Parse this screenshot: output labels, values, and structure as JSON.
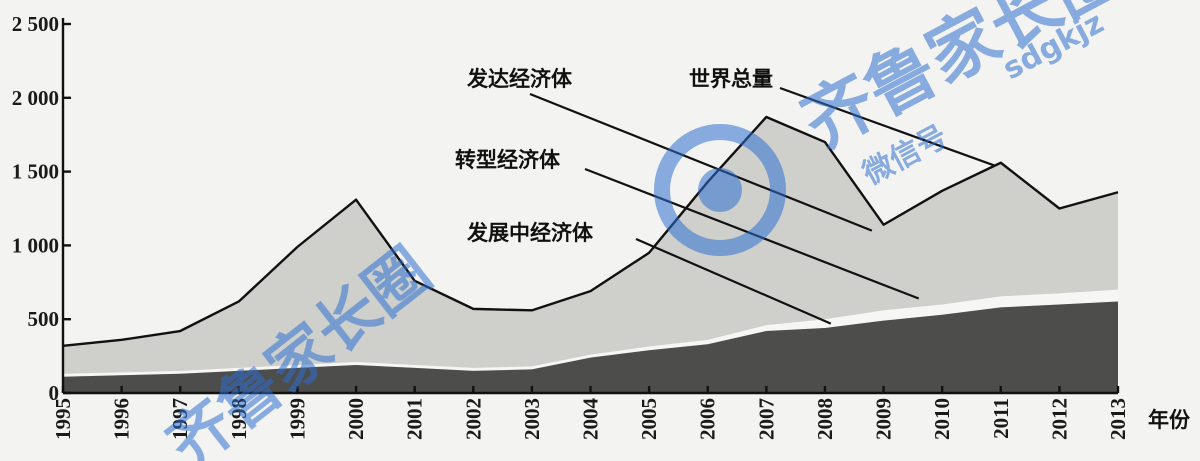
{
  "chart_data": {
    "type": "area",
    "x": [
      1995,
      1996,
      1997,
      1998,
      1999,
      2000,
      2001,
      2002,
      2003,
      2004,
      2005,
      2006,
      2007,
      2008,
      2009,
      2010,
      2011,
      2012,
      2013
    ],
    "series": [
      {
        "name": "世界总量",
        "values": [
          320,
          360,
          420,
          620,
          990,
          1310,
          760,
          570,
          560,
          690,
          950,
          1430,
          1870,
          1700,
          1140,
          1370,
          1560,
          1250,
          1360
        ]
      },
      {
        "name": "发展中经济体",
        "values": [
          110,
          120,
          130,
          150,
          170,
          190,
          170,
          150,
          160,
          240,
          290,
          330,
          420,
          440,
          490,
          530,
          580,
          600,
          620
        ]
      },
      {
        "name": "发达经济体",
        "values": null
      },
      {
        "name": "转型经济体",
        "values": null
      }
    ],
    "transition_band": [
      20,
      20,
      20,
      20,
      20,
      20,
      20,
      20,
      20,
      20,
      25,
      30,
      40,
      60,
      70,
      70,
      75,
      75,
      80
    ],
    "ylim": [
      0,
      2500
    ],
    "y_ticks": [
      "0",
      "500",
      "1 000",
      "1 500",
      "2 000",
      "2 500"
    ],
    "y_tick_values": [
      0,
      500,
      1000,
      1500,
      2000,
      2500
    ],
    "x_tick_labels": [
      "1995",
      "1996",
      "1997",
      "1998",
      "1999",
      "2000",
      "2001",
      "2002",
      "2003",
      "2004",
      "2005",
      "2006",
      "2007",
      "2008",
      "2009",
      "2010",
      "2011",
      "2012",
      "2013"
    ],
    "xlabel": "年份",
    "ylabel": "",
    "title": "",
    "annotations": [
      {
        "text": "发达经济体",
        "target_year": 2008.8,
        "target_value": 1100
      },
      {
        "text": "世界总量",
        "target_year": 2010.9,
        "target_value": 1540
      },
      {
        "text": "转型经济体",
        "target_year": 2009.6,
        "target_value": 640
      },
      {
        "text": "发展中经济体",
        "target_year": 2008.1,
        "target_value": 470
      }
    ],
    "colors": {
      "world_area": "#cfd0cc",
      "developing_area": "#4d4d4c",
      "transition_area": "#f6f6f4",
      "outline": "#111111"
    },
    "grid": false
  },
  "watermark": {
    "brand": "齐鲁家长圈",
    "sub": "微信号",
    "latin": "sdgkjz",
    "color": "#2f6fd0"
  }
}
